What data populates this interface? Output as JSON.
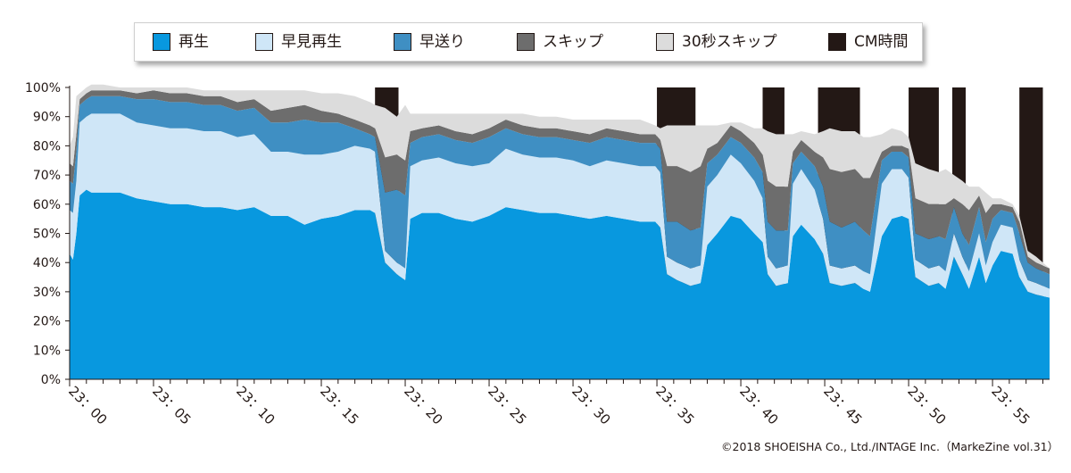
{
  "legend": [
    {
      "label": "再生",
      "color": "#0898df",
      "edge": "#231815"
    },
    {
      "label": "早見再生",
      "color": "#cfe6f7",
      "edge": "#231815"
    },
    {
      "label": "早送り",
      "color": "#3f8fc3",
      "edge": "#231815"
    },
    {
      "label": "スキップ",
      "color": "#6d6d6d",
      "edge": "#231815"
    },
    {
      "label": "30秒スキップ",
      "color": "#dcdcdc",
      "edge": "#231815"
    },
    {
      "label": "CM時間",
      "color": "#231815",
      "edge": "#231815"
    }
  ],
  "footer": {
    "credit": "©2018 SHOEISHA Co., Ltd./INTAGE Inc.（MarkeZine vol.31）"
  },
  "chart_data": {
    "type": "area",
    "stacked": true,
    "x_unit": "minute",
    "xlim": [
      0,
      58.4
    ],
    "ylim": [
      0,
      100
    ],
    "y_ticks": [
      "0%",
      "10%",
      "20%",
      "30%",
      "40%",
      "50%",
      "60%",
      "70%",
      "80%",
      "90%",
      "100%"
    ],
    "y_tick_values": [
      0,
      10,
      20,
      30,
      40,
      50,
      60,
      70,
      80,
      90,
      100
    ],
    "x_ticks": [
      "23：00",
      "23：05",
      "23：10",
      "23：15",
      "23：20",
      "23：25",
      "23：30",
      "23：35",
      "23：40",
      "23：45",
      "23：50",
      "23：55"
    ],
    "x_tick_values": [
      0,
      5,
      10,
      15,
      20,
      25,
      30,
      35,
      40,
      45,
      50,
      55
    ],
    "x": [
      0,
      0.2,
      0.4,
      0.6,
      1.0,
      1.3,
      2.0,
      3.0,
      4.0,
      5.0,
      6.0,
      7.0,
      8.0,
      9.0,
      10.0,
      11.0,
      12.0,
      13.0,
      14.0,
      15.0,
      16.0,
      17.0,
      17.9,
      18.2,
      18.8,
      19.5,
      20.0,
      20.3,
      21.0,
      22.0,
      23.0,
      24.0,
      25.0,
      26.0,
      27.0,
      28.0,
      29.0,
      30.0,
      31.0,
      32.0,
      33.0,
      34.0,
      34.9,
      35.2,
      35.6,
      36.2,
      37.0,
      37.6,
      38.0,
      38.6,
      39.4,
      40.0,
      40.8,
      41.3,
      41.6,
      42.1,
      42.8,
      43.1,
      43.6,
      44.4,
      44.9,
      45.3,
      46.0,
      46.8,
      47.3,
      47.7,
      48.4,
      49.0,
      49.6,
      50.0,
      50.4,
      51.2,
      51.8,
      52.2,
      52.7,
      53.2,
      53.6,
      54.2,
      54.6,
      55.0,
      55.5,
      56.2,
      56.6,
      57.1,
      57.6,
      58.4
    ],
    "series": [
      {
        "name": "再生",
        "color": "#0898df",
        "values": [
          43,
          41,
          50,
          63,
          65,
          64,
          64,
          64,
          62,
          61,
          60,
          60,
          59,
          59,
          58,
          59,
          56,
          56,
          53,
          55,
          56,
          58,
          58,
          57,
          40,
          36,
          34,
          55,
          57,
          57,
          55,
          54,
          56,
          59,
          58,
          57,
          57,
          56,
          55,
          56,
          55,
          54,
          54,
          52,
          36,
          34,
          32,
          33,
          46,
          50,
          56,
          55,
          50,
          47,
          36,
          32,
          33,
          49,
          53,
          48,
          43,
          33,
          32,
          33,
          31,
          30,
          49,
          55,
          56,
          55,
          35,
          32,
          33,
          31,
          42,
          36,
          31,
          42,
          33,
          39,
          44,
          43,
          35,
          30,
          29,
          28
        ]
      },
      {
        "name": "早見再生",
        "color": "#cfe6f7",
        "values": [
          15,
          16,
          18,
          25,
          25,
          27,
          27,
          27,
          26,
          26,
          26,
          26,
          26,
          26,
          25,
          25,
          22,
          22,
          24,
          22,
          22,
          22,
          21,
          21,
          4,
          4,
          4,
          18,
          18,
          19,
          19,
          19,
          18,
          20,
          19,
          19,
          19,
          19,
          18,
          19,
          19,
          19,
          19,
          19,
          6,
          6,
          6,
          6,
          20,
          20,
          21,
          19,
          18,
          15,
          6,
          6,
          6,
          18,
          19,
          17,
          12,
          6,
          6,
          6,
          6,
          6,
          18,
          17,
          16,
          14,
          6,
          6,
          6,
          6,
          8,
          6,
          6,
          8,
          6,
          8,
          9,
          9,
          6,
          4,
          4,
          3
        ]
      },
      {
        "name": "早送り",
        "color": "#3f8fc3",
        "values": [
          10,
          10,
          10,
          6,
          6,
          6,
          6,
          6,
          8,
          9,
          9,
          9,
          9,
          9,
          9,
          9,
          10,
          10,
          12,
          11,
          10,
          6,
          5,
          5,
          20,
          25,
          25,
          8,
          8,
          8,
          8,
          8,
          9,
          7,
          7,
          7,
          7,
          7,
          8,
          8,
          8,
          8,
          8,
          8,
          12,
          14,
          13,
          13,
          8,
          7,
          6,
          7,
          8,
          9,
          12,
          13,
          12,
          7,
          6,
          8,
          11,
          15,
          14,
          15,
          14,
          13,
          8,
          6,
          6,
          7,
          9,
          10,
          10,
          11,
          9,
          8,
          9,
          9,
          8,
          8,
          5,
          5,
          9,
          6,
          5,
          5
        ]
      },
      {
        "name": "スキップ",
        "color": "#6d6d6d",
        "values": [
          6,
          6,
          6,
          2,
          2,
          2,
          2,
          2,
          2,
          3,
          3,
          3,
          3,
          3,
          3,
          3,
          4,
          5,
          5,
          4,
          3,
          3,
          3,
          3,
          12,
          12,
          12,
          4,
          3,
          3,
          3,
          3,
          3,
          3,
          3,
          3,
          3,
          3,
          3,
          3,
          3,
          3,
          3,
          3,
          19,
          19,
          20,
          21,
          5,
          4,
          4,
          4,
          5,
          6,
          14,
          15,
          15,
          4,
          4,
          5,
          10,
          18,
          19,
          18,
          18,
          20,
          3,
          2,
          2,
          3,
          12,
          12,
          11,
          12,
          3,
          10,
          12,
          4,
          10,
          5,
          2,
          2,
          4,
          2,
          2,
          2
        ]
      },
      {
        "name": "30秒スキップ",
        "color": "#dcdcdc",
        "values": [
          6,
          10,
          13,
          2,
          2,
          2,
          2,
          1,
          2,
          1,
          2,
          2,
          2,
          2,
          4,
          3,
          7,
          6,
          5,
          6,
          7,
          8,
          8,
          8,
          17,
          13,
          19,
          6,
          5,
          4,
          6,
          7,
          5,
          2,
          4,
          4,
          4,
          4,
          5,
          3,
          4,
          5,
          3,
          4,
          14,
          14,
          16,
          14,
          8,
          6,
          1,
          3,
          5,
          9,
          17,
          18,
          18,
          6,
          3,
          6,
          9,
          14,
          14,
          13,
          14,
          14,
          6,
          6,
          5,
          4,
          12,
          12,
          11,
          12,
          8,
          8,
          8,
          3,
          7,
          2,
          2,
          1,
          2,
          2,
          2,
          0
        ]
      }
    ],
    "cm_periods": [
      [
        18.2,
        19.6
      ],
      [
        35.0,
        37.3
      ],
      [
        41.3,
        42.6
      ],
      [
        44.6,
        47.1
      ],
      [
        50.0,
        51.8
      ],
      [
        52.6,
        53.4
      ],
      [
        56.6,
        58.0
      ]
    ]
  }
}
